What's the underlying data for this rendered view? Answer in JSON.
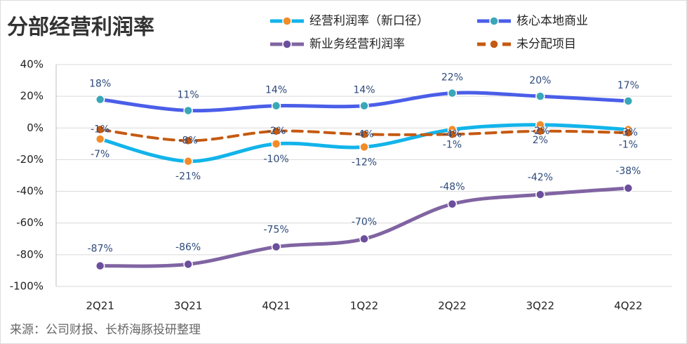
{
  "chart_data": {
    "type": "line",
    "title": "分部经营利润率",
    "source": "来源：公司财报、长桥海豚投研整理",
    "categories": [
      "2Q21",
      "3Q21",
      "4Q21",
      "1Q22",
      "2Q22",
      "3Q22",
      "4Q22"
    ],
    "series": [
      {
        "name": "经营利润率（新口径）",
        "color": "#12b4ea",
        "marker_color": "#f28c28",
        "dash": false,
        "values": [
          -7,
          -21,
          -10,
          -12,
          -1,
          2,
          -1
        ],
        "value_labels": [
          "-7%",
          "-21%",
          "-10%",
          "-12%",
          "-1%",
          "2%",
          "-1%"
        ]
      },
      {
        "name": "核心本地商业",
        "color": "#4a5ee8",
        "marker_color": "#3aa7b9",
        "dash": false,
        "values": [
          18,
          11,
          14,
          14,
          22,
          20,
          17
        ],
        "value_labels": [
          "18%",
          "11%",
          "14%",
          "14%",
          "22%",
          "20%",
          "17%"
        ]
      },
      {
        "name": "新业务经营利润率",
        "color": "#8064a2",
        "marker_color": "#6b4f9c",
        "dash": false,
        "values": [
          -87,
          -86,
          -75,
          -70,
          -48,
          -42,
          -38
        ],
        "value_labels": [
          "-87%",
          "-86%",
          "-75%",
          "-70%",
          "-48%",
          "-42%",
          "-38%"
        ]
      },
      {
        "name": "未分配项目",
        "color": "#c55a11",
        "marker_color": "#c55a11",
        "dash": true,
        "values": [
          -1,
          -8,
          -2,
          -4,
          -4,
          -2,
          -3
        ],
        "value_labels": [
          "-1%",
          "-8%",
          "-2%",
          "-4%",
          "-4%",
          "-2%",
          "-3%"
        ]
      }
    ],
    "ylim": [
      -100,
      40
    ],
    "yticks": [
      {
        "value": -100,
        "label": "-100%"
      },
      {
        "value": -80,
        "label": "-80%"
      },
      {
        "value": -60,
        "label": "-60%"
      },
      {
        "value": -40,
        "label": "-40%"
      },
      {
        "value": -20,
        "label": "-20%"
      },
      {
        "value": 0,
        "label": "0%"
      },
      {
        "value": 20,
        "label": "20%"
      },
      {
        "value": 40,
        "label": "40%"
      }
    ],
    "grid": true
  }
}
